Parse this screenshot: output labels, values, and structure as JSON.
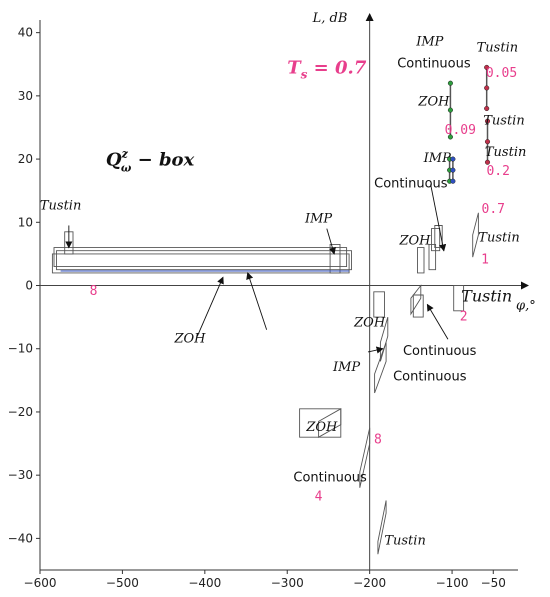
{
  "chart_data": {
    "type": "scatter",
    "title": "",
    "xlabel": "φ,°",
    "ylabel": "L, dB",
    "xlim": [
      -600,
      -20
    ],
    "ylim": [
      -45,
      42
    ],
    "xticks": [
      -600,
      -500,
      -400,
      -300,
      -200,
      -100,
      -50
    ],
    "xtick_labels": [
      "−600",
      "−500",
      "−400",
      "−300",
      "−200",
      "−100",
      "−50"
    ],
    "yticks": [
      40,
      30,
      20,
      10,
      0,
      -10,
      -20,
      -30,
      -40
    ],
    "ytick_labels": [
      "40",
      "30",
      "20",
      "10",
      "0",
      "−10",
      "−20",
      "−30",
      "−40"
    ],
    "grid": false,
    "colors": {
      "pink": "#e83e8c",
      "box": "#555555",
      "blue": "#3050c0",
      "green": "#2e9e3e",
      "red": "#c0304a"
    },
    "heading": {
      "symbol": "T",
      "subscript": "s",
      "rest": " = 0.7"
    },
    "box_title": {
      "symbol": "Q",
      "sup": "z",
      "sub": "ω",
      "rest": " − box"
    },
    "ts_labels": [
      {
        "text": "8",
        "x": -535,
        "y": -1.5
      },
      {
        "text": "0.05",
        "x": -40,
        "y": 33
      },
      {
        "text": "0.09",
        "x": -90,
        "y": 24
      },
      {
        "text": "0.2",
        "x": -44,
        "y": 17.5
      },
      {
        "text": "0.7",
        "x": -50,
        "y": 11.5
      },
      {
        "text": "1",
        "x": -60,
        "y": 3.5
      },
      {
        "text": "2",
        "x": -86,
        "y": -5.5
      },
      {
        "text": "8",
        "x": -190,
        "y": -25
      },
      {
        "text": "4",
        "x": -262,
        "y": -34
      }
    ],
    "method_labels": [
      {
        "text": "Tustin",
        "x": -575,
        "y": 12,
        "font": "italic"
      },
      {
        "text": "IMP",
        "x": -262,
        "y": 10,
        "font": "italic"
      },
      {
        "text": "ZOH",
        "x": -418,
        "y": -9,
        "font": "italic"
      },
      {
        "text": "IMP",
        "x": -127,
        "y": 38,
        "font": "italic"
      },
      {
        "text": "Continuous",
        "x": -122,
        "y": 34.5,
        "font": "upright"
      },
      {
        "text": "ZOH",
        "x": -122,
        "y": 28.5,
        "font": "italic"
      },
      {
        "text": "Tustin",
        "x": -45,
        "y": 37,
        "font": "italic"
      },
      {
        "text": "Tustin",
        "x": -37,
        "y": 25.5,
        "font": "italic"
      },
      {
        "text": "Tustin",
        "x": -35,
        "y": 20.5,
        "font": "italic"
      },
      {
        "text": "IMP",
        "x": -118,
        "y": 19.5,
        "font": "italic"
      },
      {
        "text": "Continuous",
        "x": -150,
        "y": 15.5,
        "font": "upright"
      },
      {
        "text": "ZOH",
        "x": -145,
        "y": 6.5,
        "font": "italic"
      },
      {
        "text": "Tustin",
        "x": -43,
        "y": 7,
        "font": "italic"
      },
      {
        "text": "Tustin",
        "x": -58,
        "y": -2.5,
        "font": "big"
      },
      {
        "text": "ZOH",
        "x": -200,
        "y": -6.5,
        "font": "italic"
      },
      {
        "text": "IMP",
        "x": -228,
        "y": -13.5,
        "font": "italic"
      },
      {
        "text": "Continuous",
        "x": -115,
        "y": -11,
        "font": "upright"
      },
      {
        "text": "Continuous",
        "x": -127,
        "y": -15,
        "font": "upright"
      },
      {
        "text": "ZOH",
        "x": -258,
        "y": -23,
        "font": "italic"
      },
      {
        "text": "Continuous",
        "x": -248,
        "y": -31,
        "font": "upright"
      },
      {
        "text": "Tustin",
        "x": -157,
        "y": -41,
        "font": "italic"
      }
    ],
    "arrows": [
      {
        "from": [
          -565,
          9.5
        ],
        "to": [
          -565,
          6
        ]
      },
      {
        "from": [
          -252,
          9
        ],
        "to": [
          -243,
          5
        ]
      },
      {
        "from": [
          -325,
          -7
        ],
        "to": [
          -348,
          2
        ]
      },
      {
        "from": [
          -409,
          -8
        ],
        "to": [
          -378,
          1.3
        ]
      },
      {
        "from": [
          -126,
          16
        ],
        "to": [
          -110,
          5.5
        ]
      },
      {
        "from": [
          -105,
          -8.5
        ],
        "to": [
          -130,
          -3
        ]
      },
      {
        "from": [
          -202,
          -10.5
        ],
        "to": [
          -184,
          -10
        ]
      }
    ],
    "series": [
      {
        "shape": "box",
        "poly": [
          [
            -585,
            2
          ],
          [
            -225,
            2
          ],
          [
            -225,
            5
          ],
          [
            -585,
            5
          ]
        ]
      },
      {
        "shape": "box",
        "poly": [
          [
            -583,
            3
          ],
          [
            -228,
            3
          ],
          [
            -228,
            6
          ],
          [
            -583,
            6
          ]
        ]
      },
      {
        "shape": "box",
        "poly": [
          [
            -580,
            2.5
          ],
          [
            -222,
            2.5
          ],
          [
            -222,
            5.5
          ],
          [
            -580,
            5.5
          ]
        ]
      },
      {
        "shape": "box",
        "poly": [
          [
            -570,
            5
          ],
          [
            -560,
            5
          ],
          [
            -560,
            8.5
          ],
          [
            -570,
            8.5
          ]
        ]
      },
      {
        "shape": "box",
        "poly": [
          [
            -248,
            2
          ],
          [
            -236,
            2
          ],
          [
            -236,
            6.5
          ],
          [
            -248,
            6.5
          ]
        ]
      },
      {
        "shape": "box",
        "poly": [
          [
            -575,
            2.3
          ],
          [
            -225,
            2.3
          ]
        ],
        "line": true
      },
      {
        "shape": "box",
        "poly": [
          [
            -142,
            2
          ],
          [
            -134,
            2
          ],
          [
            -134,
            6
          ],
          [
            -142,
            6
          ]
        ]
      },
      {
        "shape": "box",
        "poly": [
          [
            -128,
            2.5
          ],
          [
            -120,
            2.5
          ],
          [
            -120,
            6.5
          ],
          [
            -128,
            6.5
          ]
        ]
      },
      {
        "shape": "box",
        "poly": [
          [
            -125,
            5.5
          ],
          [
            -115,
            5.5
          ],
          [
            -115,
            9
          ],
          [
            -125,
            9
          ]
        ]
      },
      {
        "shape": "box",
        "poly": [
          [
            -121,
            6
          ],
          [
            -112,
            6
          ],
          [
            -112,
            9.5
          ],
          [
            -121,
            9.5
          ]
        ]
      },
      {
        "shape": "box",
        "poly": [
          [
            -75,
            4.5
          ],
          [
            -68,
            8
          ],
          [
            -68,
            11.5
          ],
          [
            -75,
            8
          ]
        ]
      },
      {
        "shape": "box",
        "poly": [
          [
            -195,
            -5
          ],
          [
            -182,
            -5
          ],
          [
            -182,
            -1
          ],
          [
            -195,
            -1
          ]
        ]
      },
      {
        "shape": "box",
        "poly": [
          [
            -150,
            -4.5
          ],
          [
            -138,
            -2
          ],
          [
            -138,
            0
          ],
          [
            -150,
            -2
          ]
        ]
      },
      {
        "shape": "box",
        "poly": [
          [
            -147,
            -5
          ],
          [
            -135,
            -5
          ],
          [
            -135,
            -1.5
          ],
          [
            -147,
            -1.5
          ]
        ]
      },
      {
        "shape": "box",
        "poly": [
          [
            -98,
            -4
          ],
          [
            -86,
            -4
          ],
          [
            -86,
            0
          ],
          [
            -98,
            0
          ]
        ]
      },
      {
        "shape": "box",
        "poly": [
          [
            -187,
            -12
          ],
          [
            -178,
            -8
          ],
          [
            -178,
            -5
          ],
          [
            -187,
            -9
          ]
        ]
      },
      {
        "shape": "box",
        "poly": [
          [
            -194,
            -17
          ],
          [
            -180,
            -12
          ],
          [
            -180,
            -9
          ],
          [
            -194,
            -14
          ]
        ]
      },
      {
        "shape": "box",
        "poly": [
          [
            -285,
            -24
          ],
          [
            -235,
            -24
          ],
          [
            -235,
            -19.5
          ],
          [
            -285,
            -19.5
          ]
        ]
      },
      {
        "shape": "box",
        "poly": [
          [
            -262,
            -24
          ],
          [
            -235,
            -22
          ],
          [
            -235,
            -19.5
          ],
          [
            -262,
            -21.5
          ]
        ]
      },
      {
        "shape": "box",
        "poly": [
          [
            -212,
            -32
          ],
          [
            -200,
            -25
          ],
          [
            -200,
            -22.5
          ],
          [
            -212,
            -29.5
          ]
        ]
      },
      {
        "shape": "box",
        "poly": [
          [
            -190,
            -42.5
          ],
          [
            -180,
            -36
          ],
          [
            -180,
            -34
          ],
          [
            -190,
            -40.5
          ]
        ]
      }
    ],
    "dot_lines": [
      {
        "x": -102,
        "y1": 23.5,
        "y2": 32,
        "color": "green"
      },
      {
        "x": -103,
        "y1": 16.5,
        "y2": 20,
        "color": "green"
      },
      {
        "x": -99,
        "y1": 16.5,
        "y2": 20,
        "color": "blue"
      },
      {
        "x": -58,
        "y1": 28,
        "y2": 34.5,
        "color": "red"
      },
      {
        "x": -57,
        "y1": 19.5,
        "y2": 26,
        "color": "red"
      }
    ]
  }
}
